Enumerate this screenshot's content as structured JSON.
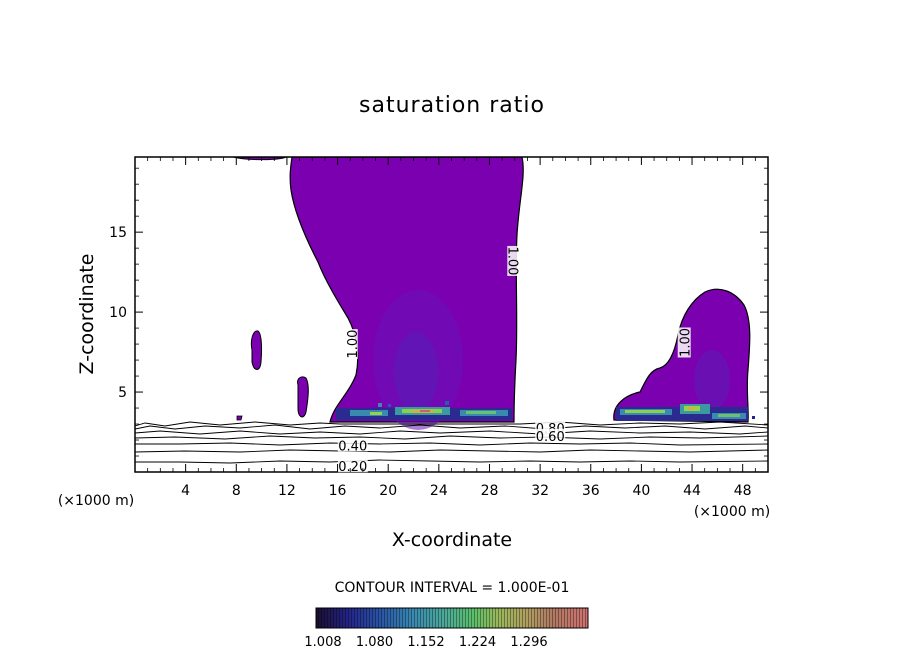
{
  "chart_data": {
    "type": "contour",
    "title": "saturation ratio",
    "xlabel": "X-coordinate",
    "ylabel": "Z-coordinate",
    "x_unit": "(×1000 m)",
    "xlim": [
      0,
      50
    ],
    "ylim": [
      0,
      19.7
    ],
    "x_ticks": [
      "4",
      "8",
      "12",
      "16",
      "20",
      "24",
      "28",
      "32",
      "36",
      "40",
      "44",
      "48"
    ],
    "y_ticks": [
      "5",
      "10",
      "15"
    ],
    "contour_interval_label": "CONTOUR INTERVAL = 1.000E-01",
    "contour_labels": [
      {
        "text": "1.00",
        "x": 17.2,
        "z": 8.0,
        "rotate": -90
      },
      {
        "text": "1.00",
        "x": 29.8,
        "z": 13.2,
        "rotate": 90
      },
      {
        "text": "1.00",
        "x": 43.5,
        "z": 8.1,
        "rotate": -90
      },
      {
        "text": "0.80",
        "x": 32.8,
        "z": 2.7,
        "rotate": 0
      },
      {
        "text": "0.60",
        "x": 32.8,
        "z": 2.2,
        "rotate": 0
      },
      {
        "text": "0.40",
        "x": 17.2,
        "z": 1.6,
        "rotate": 0
      },
      {
        "text": "0.20",
        "x": 17.2,
        "z": 0.3,
        "rotate": 0
      }
    ],
    "isolines_z": [
      0.5,
      1.1,
      1.6,
      2.0,
      2.4,
      2.7,
      2.95
    ],
    "colorbar": {
      "labels": [
        "1.008",
        "1.080",
        "1.152",
        "1.224",
        "1.296"
      ],
      "colors": [
        "#1a0f2e",
        "#24248a",
        "#2a5aa8",
        "#3a8ab0",
        "#4aa89a",
        "#5bbf6a",
        "#9ab85a",
        "#b0a060",
        "#b07a62",
        "#c06068",
        "#d07070"
      ]
    },
    "fill_color": "#7a00b0"
  }
}
